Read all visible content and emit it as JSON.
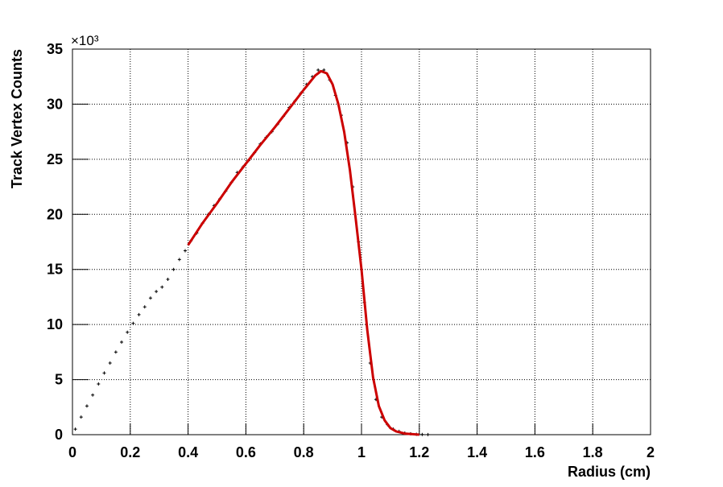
{
  "chart_data": {
    "type": "scatter",
    "x_label": "Radius (cm)",
    "y_label": "Track Vertex Counts",
    "y_multiplier": "×10³",
    "xlim": [
      0,
      2
    ],
    "ylim": [
      0,
      35
    ],
    "xticks": [
      0,
      0.2,
      0.4,
      0.6,
      0.8,
      1,
      1.2,
      1.4,
      1.6,
      1.8,
      2
    ],
    "yticks": [
      0,
      5,
      10,
      15,
      20,
      25,
      30,
      35
    ],
    "grid": true,
    "color": "#000000",
    "x": [
      0.01,
      0.03,
      0.05,
      0.07,
      0.09,
      0.11,
      0.13,
      0.15,
      0.17,
      0.19,
      0.21,
      0.23,
      0.25,
      0.27,
      0.29,
      0.31,
      0.33,
      0.35,
      0.37,
      0.39,
      0.41,
      0.43,
      0.45,
      0.47,
      0.49,
      0.51,
      0.53,
      0.55,
      0.57,
      0.59,
      0.61,
      0.63,
      0.65,
      0.67,
      0.69,
      0.71,
      0.73,
      0.75,
      0.77,
      0.79,
      0.81,
      0.83,
      0.85,
      0.87,
      0.89,
      0.91,
      0.93,
      0.95,
      0.97,
      0.99,
      1.01,
      1.03,
      1.05,
      1.07,
      1.09,
      1.11,
      1.13,
      1.15,
      1.17,
      1.19,
      1.21,
      1.23
    ],
    "values": [
      0.5,
      1.6,
      2.6,
      3.6,
      4.6,
      5.6,
      6.5,
      7.5,
      8.4,
      9.3,
      10.1,
      10.9,
      11.6,
      12.4,
      13.0,
      13.4,
      14.1,
      15.0,
      15.9,
      16.7,
      17.6,
      18.3,
      19.2,
      20.0,
      20.8,
      21.4,
      22.1,
      22.9,
      23.8,
      24.3,
      24.9,
      25.6,
      26.4,
      27.0,
      27.5,
      28.2,
      28.9,
      29.7,
      30.3,
      31.0,
      31.8,
      32.5,
      33.1,
      33.1,
      32.2,
      30.8,
      29.0,
      26.5,
      22.5,
      17.5,
      12.0,
      6.5,
      3.2,
      1.6,
      0.9,
      0.5,
      0.3,
      0.15,
      0.08,
      0.04,
      0.02,
      0.01
    ],
    "fit": {
      "type": "line",
      "color": "#cc0000",
      "x": [
        0.4,
        0.45,
        0.5,
        0.55,
        0.6,
        0.65,
        0.7,
        0.75,
        0.8,
        0.84,
        0.86,
        0.88,
        0.9,
        0.92,
        0.94,
        0.96,
        0.98,
        1.0,
        1.02,
        1.04,
        1.06,
        1.08,
        1.1,
        1.12,
        1.15,
        1.2
      ],
      "values": [
        17.2,
        19.2,
        21.0,
        22.9,
        24.6,
        26.3,
        27.9,
        29.6,
        31.3,
        32.6,
        33.0,
        32.8,
        31.8,
        30.0,
        27.5,
        24.0,
        19.6,
        15.0,
        9.5,
        5.2,
        2.6,
        1.3,
        0.6,
        0.3,
        0.1,
        0.0
      ]
    }
  }
}
